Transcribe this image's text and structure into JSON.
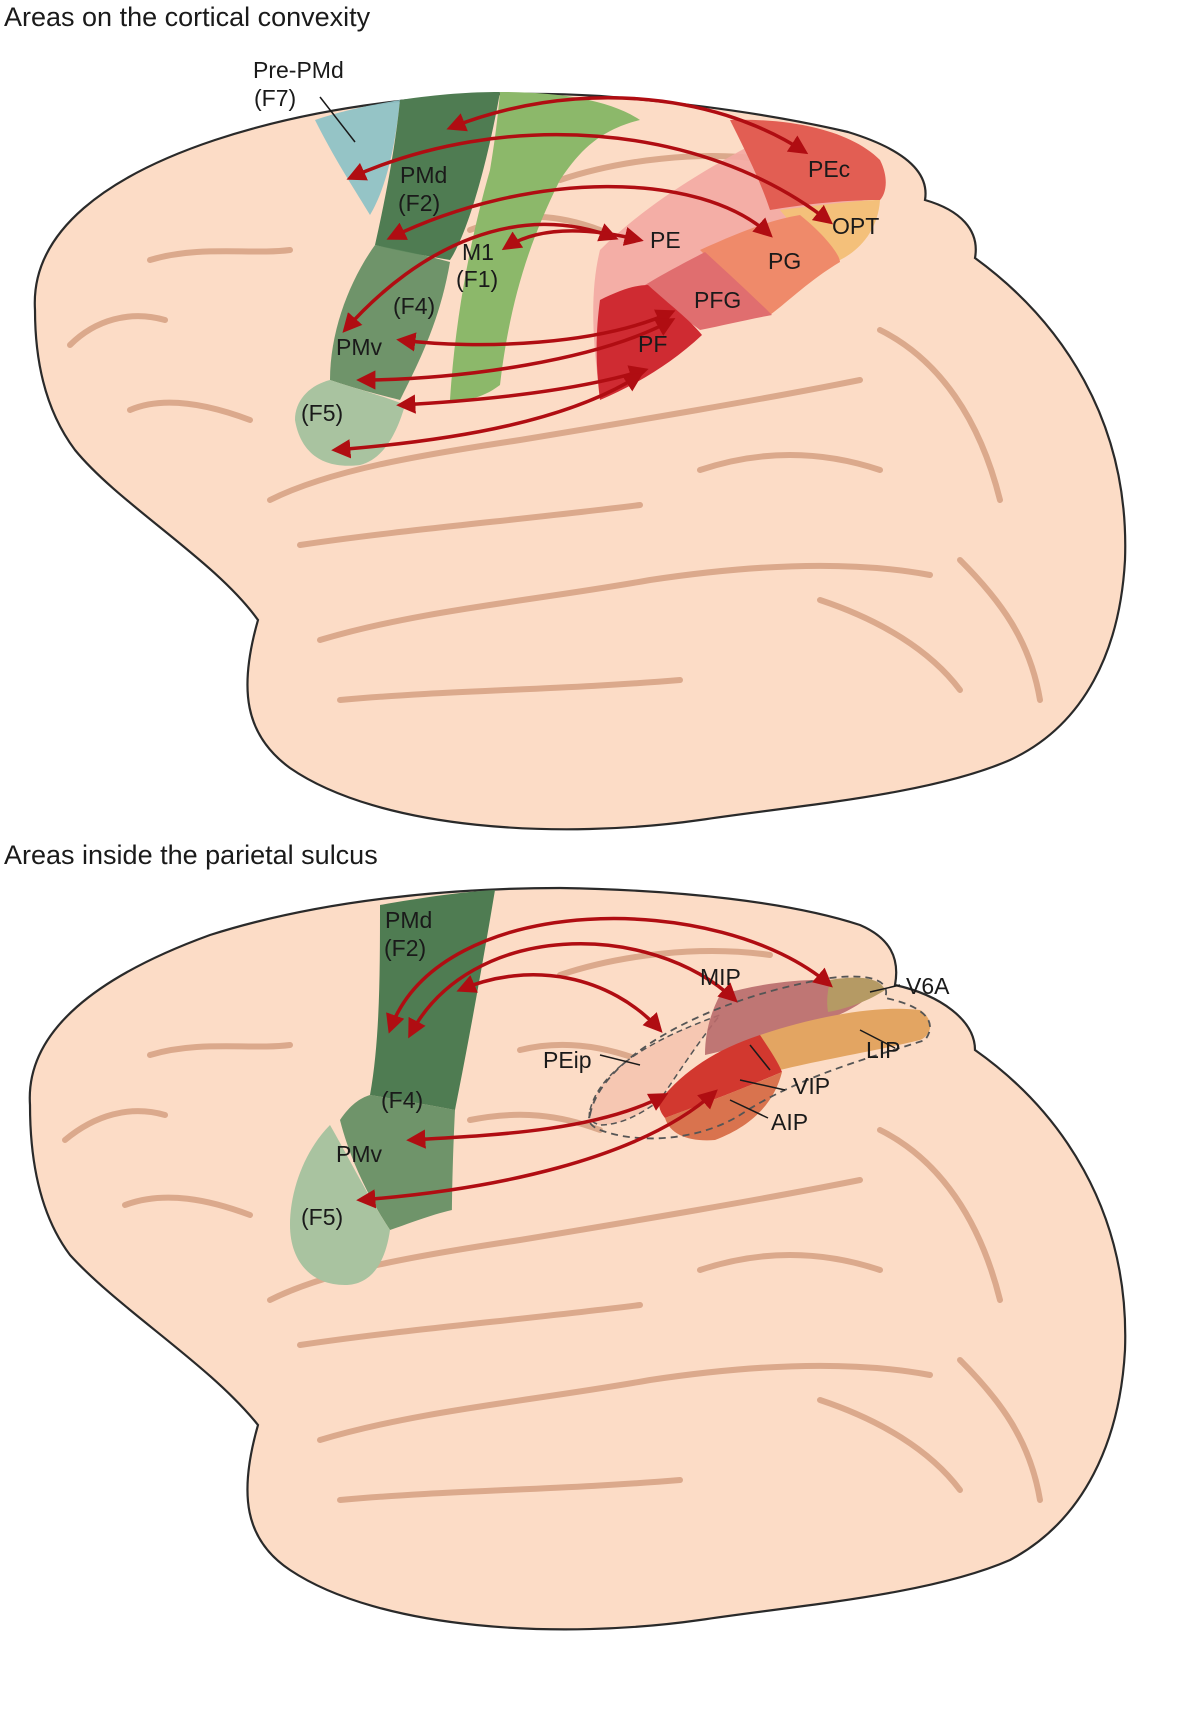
{
  "top": {
    "title": "Areas on the cortical convexity",
    "areas": {
      "pre_pmd": "Pre-PMd",
      "f7": "(F7)",
      "pmd": "PMd",
      "f2": "(F2)",
      "m1": "M1",
      "f1": "(F1)",
      "f4": "(F4)",
      "pmv": "PMv",
      "f5": "(F5)",
      "pe": "PE",
      "pec": "PEc",
      "opt": "OPT",
      "pg": "PG",
      "pfg": "PFG",
      "pf": "PF"
    }
  },
  "bottom": {
    "title": "Areas inside the parietal sulcus",
    "areas": {
      "pmd": "PMd",
      "f2": "(F2)",
      "f4": "(F4)",
      "pmv": "PMv",
      "f5": "(F5)",
      "mip": "MIP",
      "v6a": "V6A",
      "lip": "LIP",
      "peip": "PEip",
      "vip": "VIP",
      "aip": "AIP"
    }
  },
  "colors": {
    "brain": "#fcdcc6",
    "brain_outline": "#2a2a2a",
    "sulcus": "#dba98c",
    "dark_green": "#4f7c52",
    "light_green": "#8cb86a",
    "sage_green": "#a9c3a0",
    "teal": "#8fc2c6",
    "red": "#d2382f",
    "pink": "#f3a8a2",
    "arrow": "#b00d12",
    "orange": "#e8a05a"
  }
}
